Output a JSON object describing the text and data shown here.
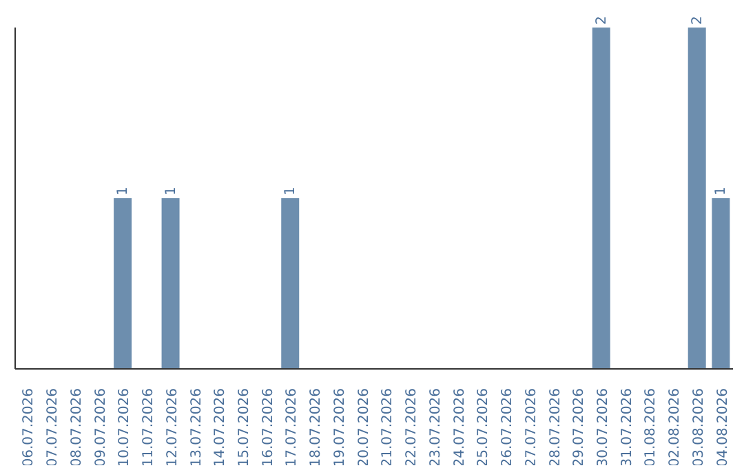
{
  "chart_data": {
    "type": "bar",
    "categories": [
      "06.07.2026",
      "07.07.2026",
      "08.07.2026",
      "09.07.2026",
      "10.07.2026",
      "11.07.2026",
      "12.07.2026",
      "13.07.2026",
      "14.07.2026",
      "15.07.2026",
      "16.07.2026",
      "17.07.2026",
      "18.07.2026",
      "19.07.2026",
      "20.07.2026",
      "21.07.2026",
      "22.07.2026",
      "23.07.2026",
      "24.07.2026",
      "25.07.2026",
      "26.07.2026",
      "27.07.2026",
      "28.07.2026",
      "29.07.2026",
      "30.07.2026",
      "31.07.2026",
      "01.08.2026",
      "02.08.2026",
      "03.08.2026",
      "04.08.2026"
    ],
    "values": [
      0,
      0,
      0,
      0,
      1,
      0,
      1,
      0,
      0,
      0,
      0,
      1,
      0,
      0,
      0,
      0,
      0,
      0,
      0,
      0,
      0,
      0,
      0,
      0,
      2,
      0,
      0,
      0,
      2,
      1
    ],
    "value_labels": [
      null,
      null,
      null,
      null,
      "1",
      null,
      "1",
      null,
      null,
      null,
      null,
      "1",
      null,
      null,
      null,
      null,
      null,
      null,
      null,
      null,
      null,
      null,
      null,
      null,
      "2",
      null,
      null,
      null,
      "2",
      "1"
    ],
    "color": "#6d8eae",
    "tick_labels": "x",
    "grid": false,
    "legend": false
  }
}
